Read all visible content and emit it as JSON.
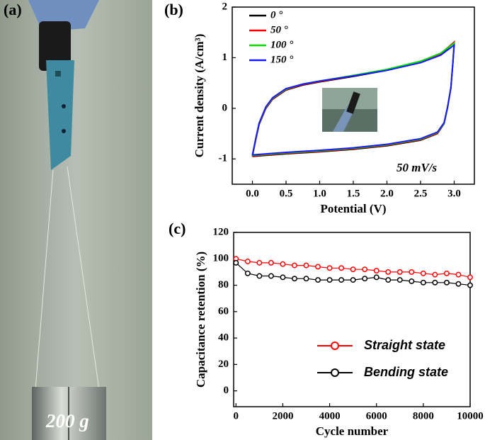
{
  "photo": {
    "label": "(a)",
    "caption": "200 g"
  },
  "chart_data": [
    {
      "type": "line",
      "panel": "(b)",
      "xlabel": "Potential (V)",
      "ylabel": "Current density (A/cm³)",
      "annotation": "50 mV/s",
      "legend": "upper left",
      "xlim": [
        -0.3,
        3.3
      ],
      "ylim": [
        -1.5,
        2
      ],
      "xticks": [
        {
          "value": 0,
          "label": "0.0"
        },
        0.5,
        {
          "value": 1,
          "label": "1.0"
        },
        1.5,
        {
          "value": 2,
          "label": "2.0"
        },
        2.5,
        {
          "value": 3,
          "label": "3.0"
        }
      ],
      "yticks": [
        -1,
        0,
        1,
        2
      ],
      "x": [
        0,
        0.05,
        0.1,
        0.2,
        0.3,
        0.5,
        0.75,
        1.0,
        1.5,
        2.0,
        2.5,
        2.8,
        3.0,
        2.98,
        2.95,
        2.9,
        2.85,
        2.75,
        2.5,
        2.0,
        1.5,
        1.0,
        0.5,
        0.0
      ],
      "series": [
        {
          "name": "0 °",
          "color": "#000000",
          "values": [
            -0.95,
            -0.62,
            -0.32,
            0.0,
            0.18,
            0.36,
            0.46,
            0.52,
            0.63,
            0.75,
            0.91,
            1.07,
            1.3,
            0.9,
            0.4,
            0.0,
            -0.3,
            -0.5,
            -0.63,
            -0.74,
            -0.81,
            -0.86,
            -0.9,
            -0.95
          ]
        },
        {
          "name": "50 °",
          "color": "#ff0000",
          "values": [
            -0.94,
            -0.61,
            -0.31,
            0.01,
            0.19,
            0.37,
            0.47,
            0.53,
            0.64,
            0.76,
            0.92,
            1.08,
            1.31,
            0.91,
            0.41,
            0.01,
            -0.29,
            -0.49,
            -0.62,
            -0.73,
            -0.8,
            -0.85,
            -0.89,
            -0.94
          ]
        },
        {
          "name": "100 °",
          "color": "#00dd00",
          "values": [
            -0.93,
            -0.6,
            -0.3,
            0.02,
            0.2,
            0.38,
            0.48,
            0.54,
            0.65,
            0.77,
            0.93,
            1.09,
            1.29,
            0.9,
            0.41,
            0.01,
            -0.29,
            -0.48,
            -0.61,
            -0.72,
            -0.79,
            -0.84,
            -0.88,
            -0.93
          ]
        },
        {
          "name": "150 °",
          "color": "#1a1aff",
          "values": [
            -0.92,
            -0.59,
            -0.29,
            0.03,
            0.21,
            0.39,
            0.48,
            0.54,
            0.64,
            0.75,
            0.9,
            1.05,
            1.25,
            0.88,
            0.4,
            0.02,
            -0.28,
            -0.47,
            -0.6,
            -0.71,
            -0.78,
            -0.83,
            -0.87,
            -0.92
          ]
        }
      ]
    },
    {
      "type": "line",
      "markers": true,
      "panel": "(c)",
      "xlabel": "Cycle number",
      "ylabel": "Capacitance retention (%)",
      "legend": "lower right",
      "xlim": [
        -100,
        10000
      ],
      "ylim": [
        -12,
        120
      ],
      "xticks": [
        0,
        2000,
        4000,
        6000,
        8000,
        10000
      ],
      "yticks": [
        0,
        20,
        40,
        60,
        80,
        100,
        120
      ],
      "x": [
        0,
        500,
        1000,
        1500,
        2000,
        2500,
        3000,
        3500,
        4000,
        4500,
        5000,
        5500,
        6000,
        6500,
        7000,
        7500,
        8000,
        8500,
        9000,
        9500,
        10000
      ],
      "series": [
        {
          "name": "Straight state",
          "color": "#ff0000",
          "values": [
            100,
            98,
            97,
            97,
            96,
            95,
            95,
            94,
            93,
            93,
            92,
            92,
            91,
            90,
            90,
            90,
            89,
            88,
            89,
            88,
            86
          ]
        },
        {
          "name": "Bending state",
          "color": "#000000",
          "values": [
            97,
            89,
            87,
            87,
            86,
            85,
            85,
            84,
            84,
            84,
            84,
            85,
            86,
            84,
            84,
            83,
            82,
            82,
            82,
            81,
            80
          ]
        }
      ]
    }
  ]
}
